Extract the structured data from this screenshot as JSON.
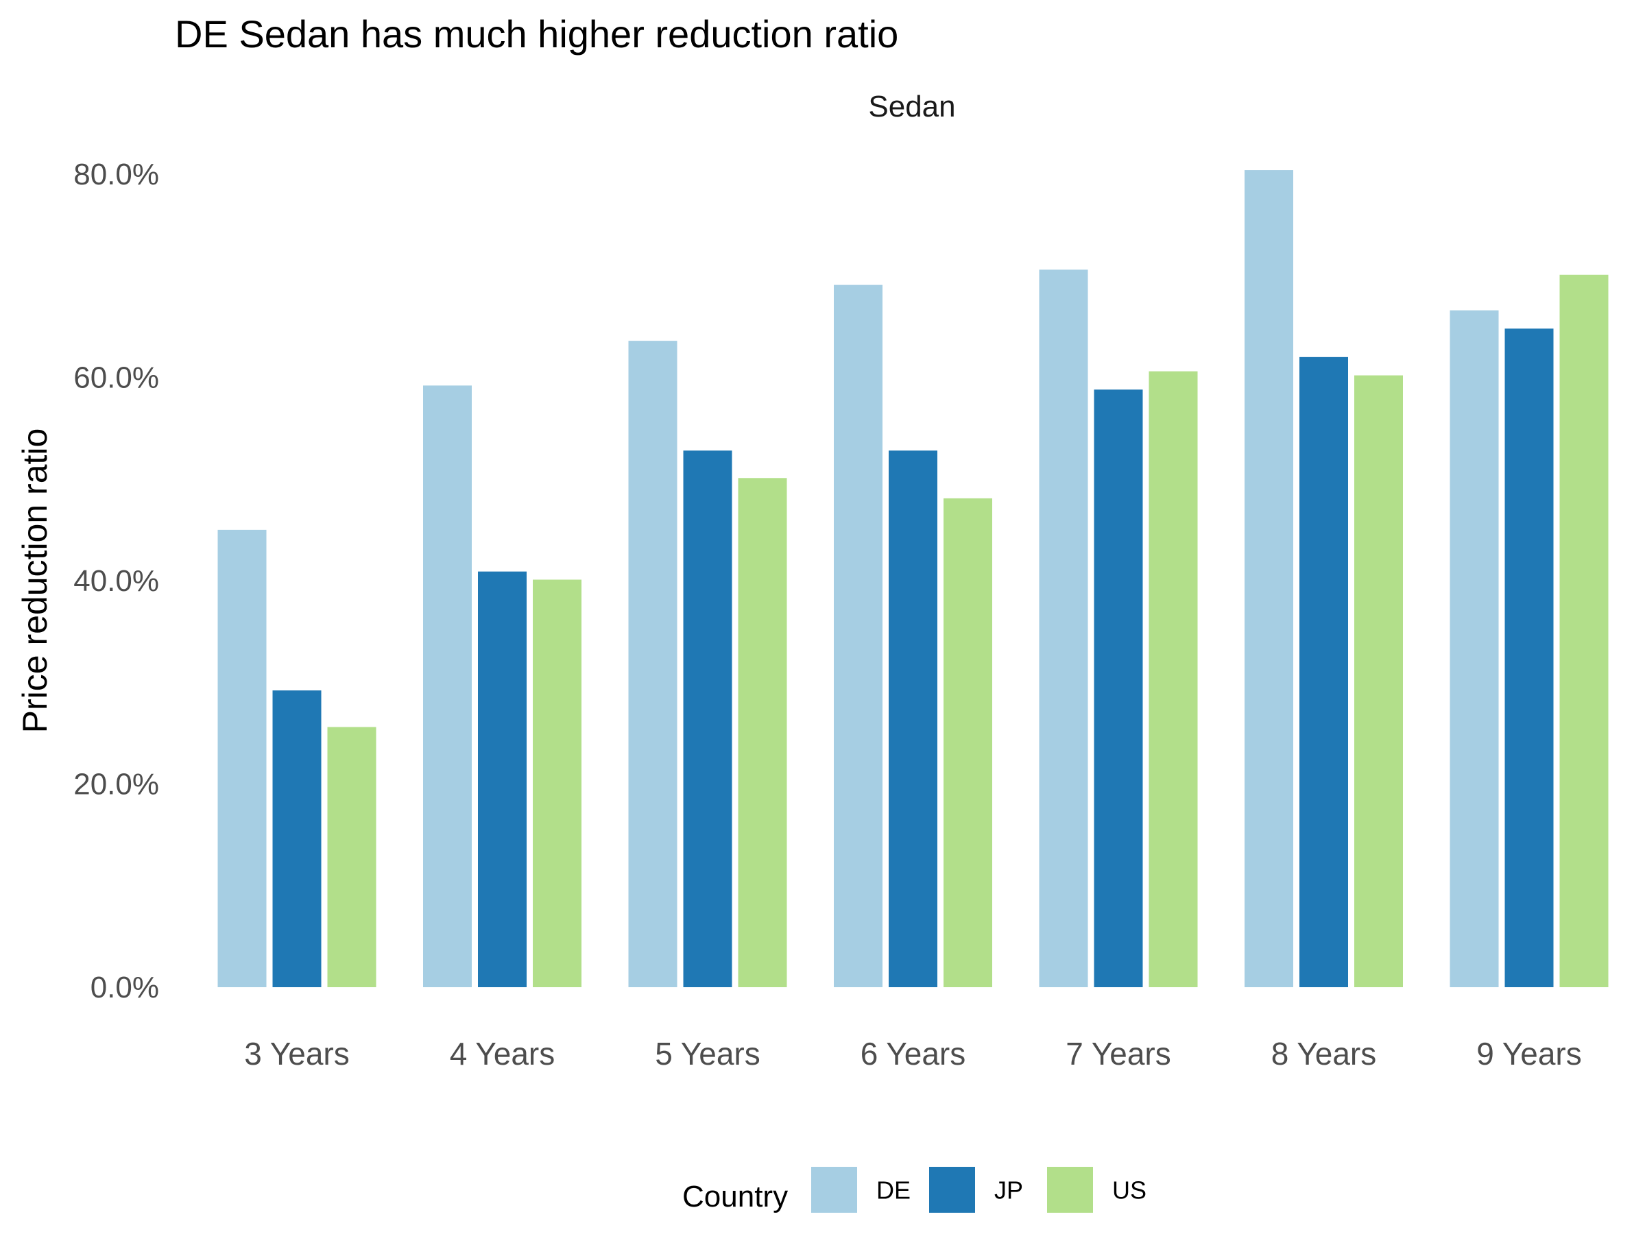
{
  "chart_data": {
    "type": "bar",
    "title": "DE Sedan has much higher reduction ratio",
    "facet_label": "Sedan",
    "xlabel": "",
    "ylabel": "Price reduction ratio",
    "ylim": [
      0,
      0.8
    ],
    "y_ticks": [
      0,
      0.2,
      0.4,
      0.6,
      0.8
    ],
    "y_tick_labels": [
      "0.0%",
      "20.0%",
      "40.0%",
      "60.0%",
      "80.0%"
    ],
    "grid": false,
    "legend_position": "bottom",
    "legend_title": "Country",
    "categories": [
      "3 Years",
      "4 Years",
      "5 Years",
      "6 Years",
      "7 Years",
      "8 Years",
      "9 Years"
    ],
    "series": [
      {
        "name": "DE",
        "color": "#a6cee3",
        "values": [
          0.45,
          0.592,
          0.636,
          0.691,
          0.706,
          0.804,
          0.666
        ]
      },
      {
        "name": "JP",
        "color": "#1f78b4",
        "values": [
          0.292,
          0.409,
          0.528,
          0.528,
          0.588,
          0.62,
          0.648
        ]
      },
      {
        "name": "US",
        "color": "#b2df8a",
        "values": [
          0.256,
          0.401,
          0.501,
          0.481,
          0.606,
          0.602,
          0.701
        ]
      }
    ]
  }
}
